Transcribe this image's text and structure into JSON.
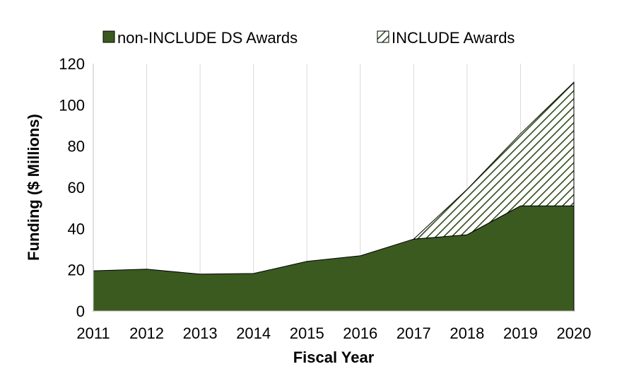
{
  "chart_data": {
    "type": "area",
    "stacked": true,
    "xlabel": "Fiscal Year",
    "ylabel": "Funding ($ Millions)",
    "ylim": [
      0,
      120
    ],
    "yticks": [
      0,
      20,
      40,
      60,
      80,
      100,
      120
    ],
    "categories": [
      "2011",
      "2012",
      "2013",
      "2014",
      "2015",
      "2016",
      "2017",
      "2018",
      "2019",
      "2020"
    ],
    "grid": "vertical",
    "legend_position": "top",
    "series": [
      {
        "name": "non-INCLUDE DS Awards",
        "values": [
          19.5,
          20.3,
          17.9,
          18.2,
          24.1,
          26.8,
          34.9,
          37.0,
          51.0,
          51.0
        ],
        "color": "#3a5a20",
        "fill": "solid"
      },
      {
        "name": "INCLUDE Awards",
        "values": [
          null,
          null,
          null,
          null,
          null,
          null,
          0,
          22.0,
          35.0,
          60.0
        ],
        "color": "#2f4a1a",
        "fill": "hatch"
      }
    ]
  }
}
